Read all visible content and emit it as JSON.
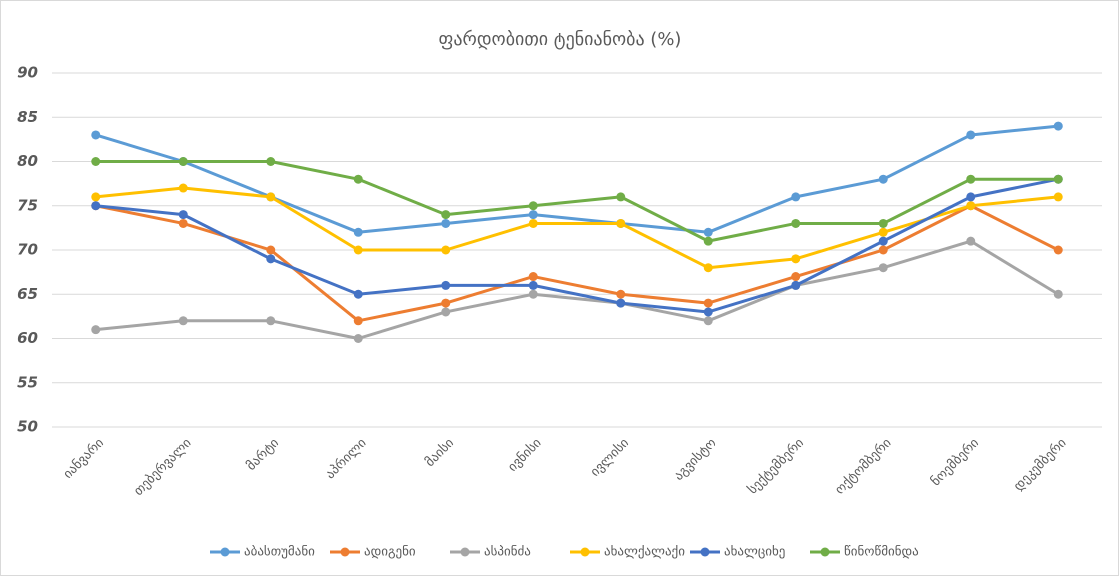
{
  "chart_data": {
    "type": "line",
    "title": "ფარდობითი ტენიანობა (%)",
    "categories": [
      "იანვარი",
      "თებერვალი",
      "მარტი",
      "აპრილი",
      "მაისი",
      "ივნისი",
      "ივლისი",
      "აგვისტო",
      "სექტემბერი",
      "ოქტომბერი",
      "ნოემბერი",
      "დეკემბერი"
    ],
    "series": [
      {
        "name": "აბასთუმანი",
        "color": "#5b9bd5",
        "values": [
          83,
          80,
          76,
          72,
          73,
          74,
          73,
          72,
          76,
          78,
          83,
          84
        ]
      },
      {
        "name": "ადიგენი",
        "color": "#ed7d31",
        "values": [
          75,
          73,
          70,
          62,
          64,
          67,
          65,
          64,
          67,
          70,
          75,
          70
        ]
      },
      {
        "name": "ასპინძა",
        "color": "#a5a5a5",
        "values": [
          61,
          62,
          62,
          60,
          63,
          65,
          64,
          62,
          66,
          68,
          71,
          65
        ]
      },
      {
        "name": "ახალქალაქი",
        "color": "#ffc000",
        "values": [
          76,
          77,
          76,
          70,
          70,
          73,
          73,
          68,
          69,
          72,
          75,
          76
        ]
      },
      {
        "name": "ახალციხე",
        "color": "#4472c4",
        "values": [
          75,
          74,
          69,
          65,
          66,
          66,
          64,
          63,
          66,
          71,
          76,
          78
        ]
      },
      {
        "name": "წინოწმინდა",
        "color": "#70ad47",
        "values": [
          80,
          80,
          80,
          78,
          74,
          75,
          76,
          71,
          73,
          73,
          78,
          78
        ]
      }
    ],
    "ylim": [
      50,
      90
    ],
    "yticks": [
      50,
      55,
      60,
      65,
      70,
      75,
      80,
      85,
      90
    ],
    "grid": true,
    "legend": "bottom"
  }
}
